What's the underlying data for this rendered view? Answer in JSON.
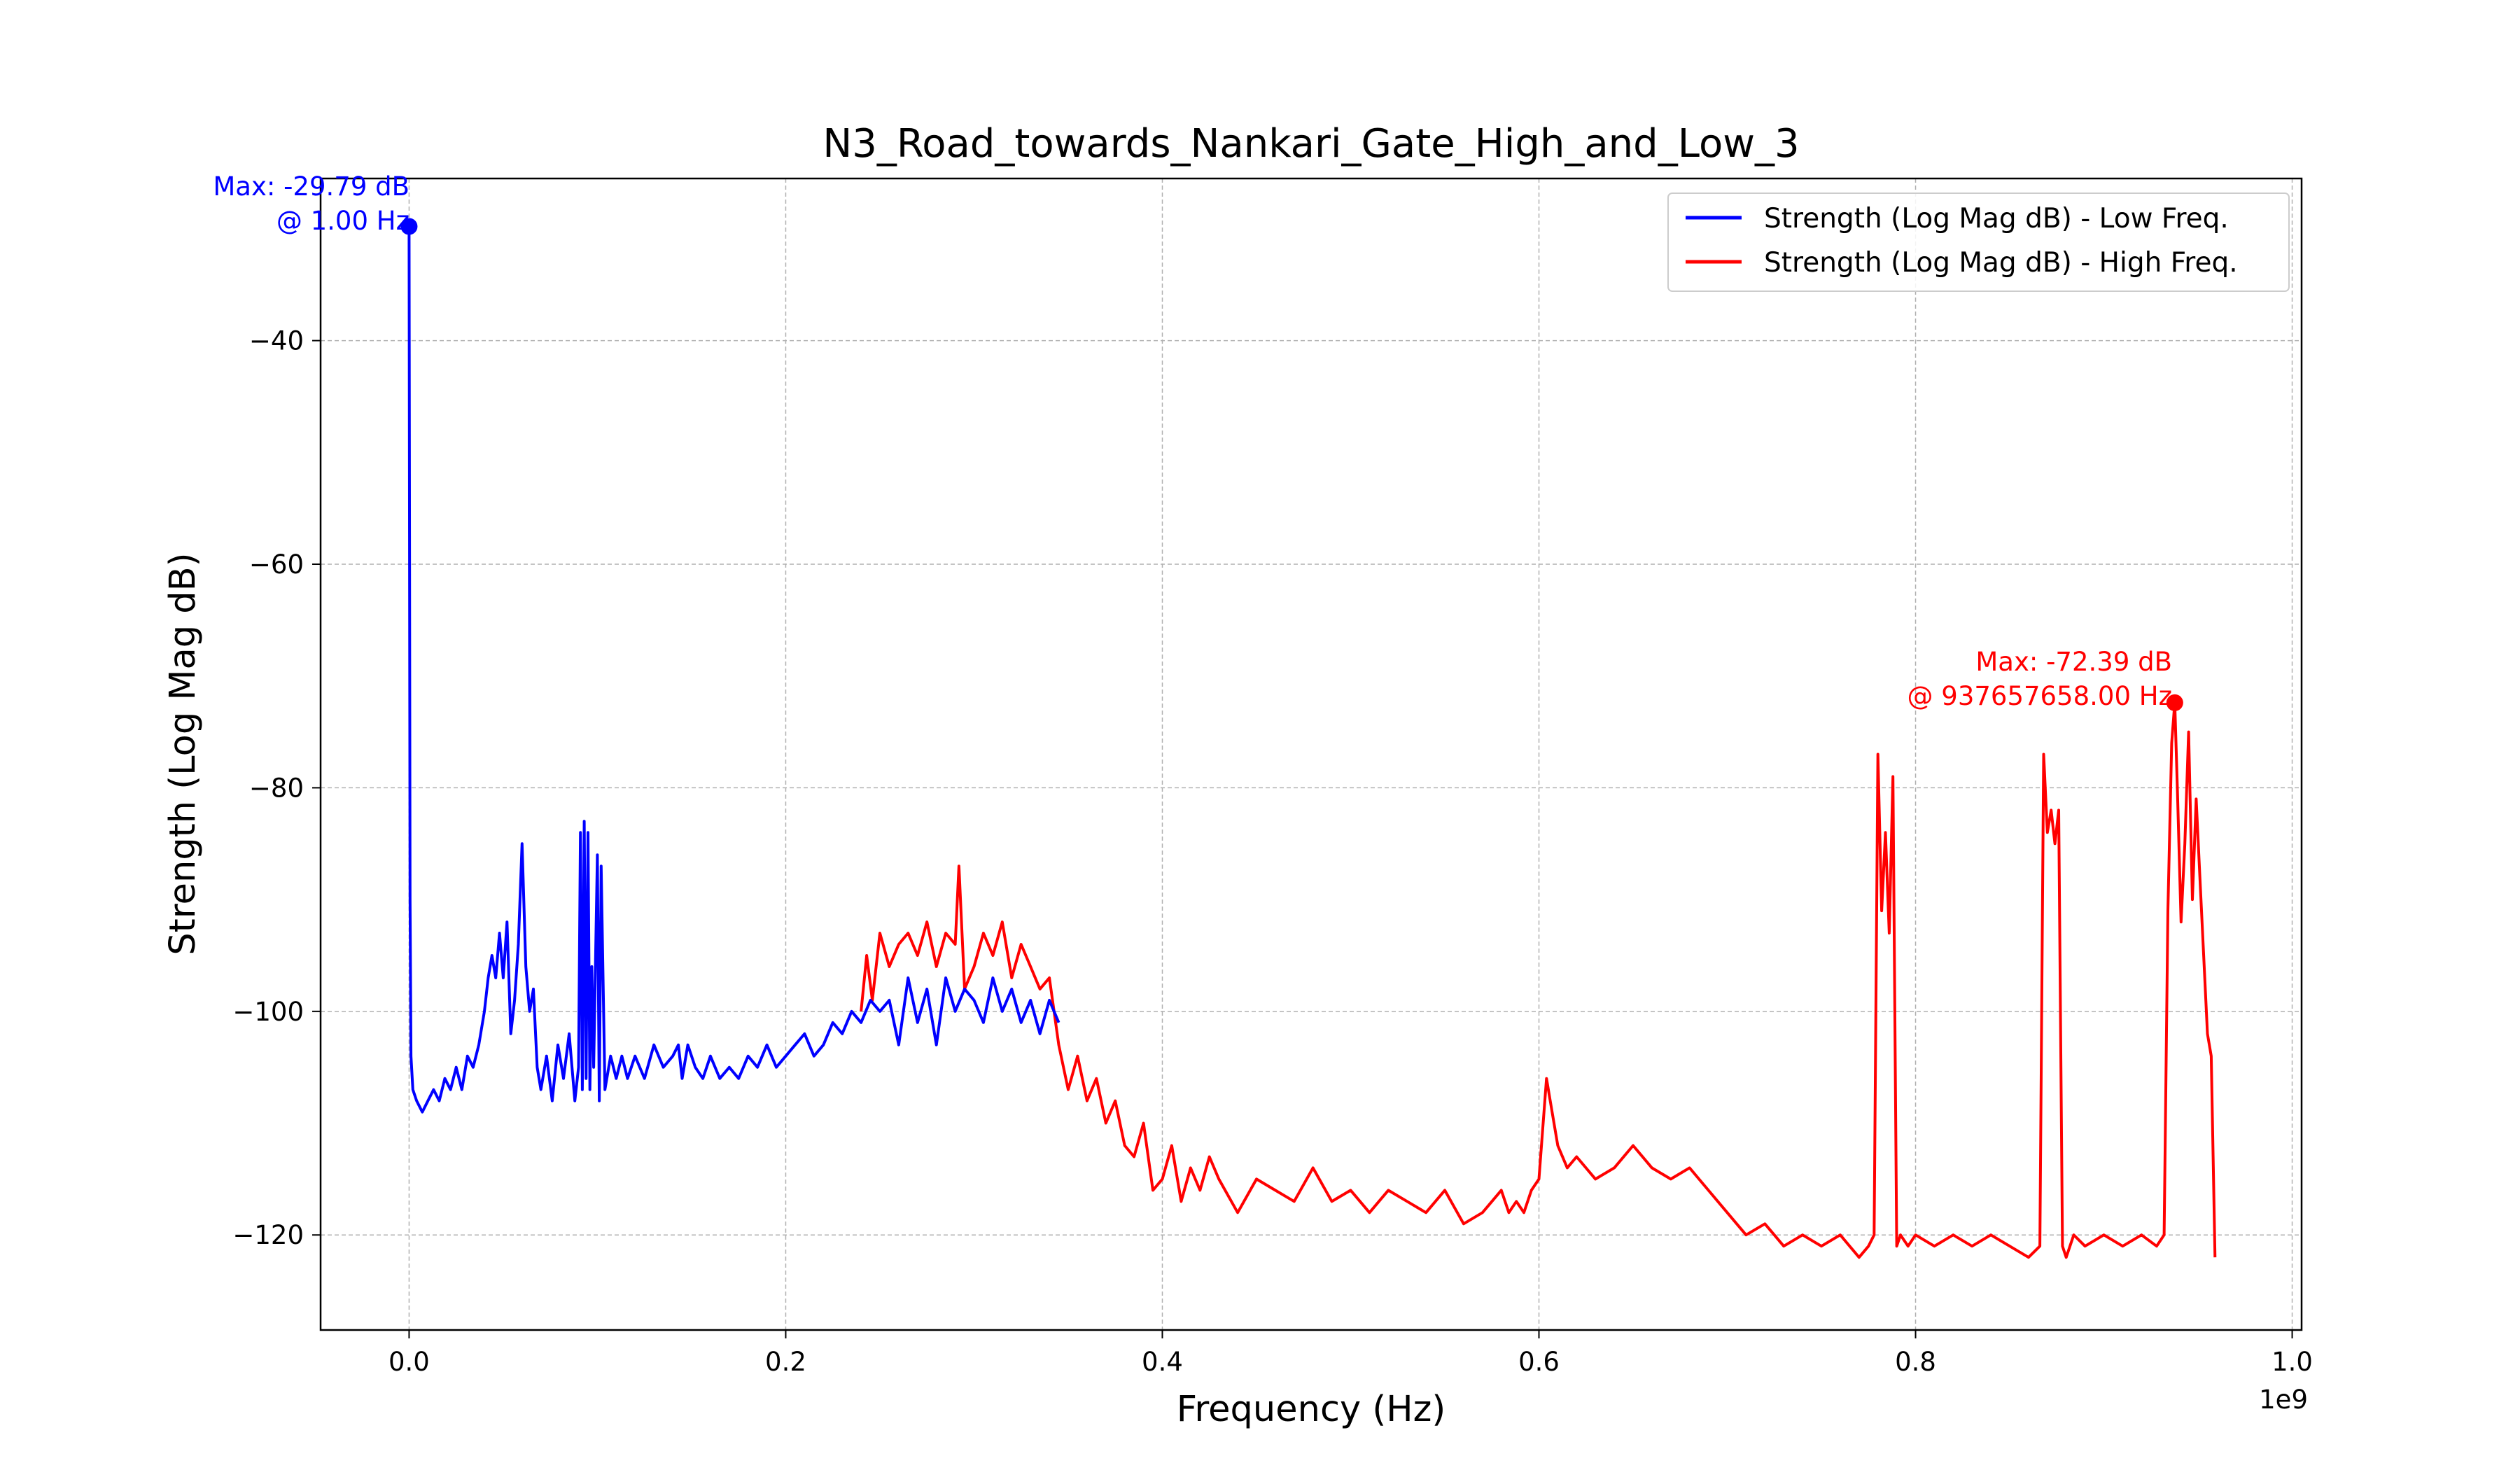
{
  "chart_data": {
    "type": "line",
    "title": "N3_Road_towards_Nankari_Gate_High_and_Low_3",
    "xlabel": "Frequency (Hz)",
    "ylabel": "Strength (Log Mag dB)",
    "x_scale_note": "1e9",
    "x_unit_scale": 1000000000,
    "xlim": [
      -47000000,
      1005000000
    ],
    "ylim": [
      -128.5,
      -25.5
    ],
    "x_ticks": [
      0,
      200000000,
      400000000,
      600000000,
      800000000,
      1000000000
    ],
    "x_tick_labels": [
      "0.0",
      "0.2",
      "0.4",
      "0.6",
      "0.8",
      "1.0"
    ],
    "y_ticks": [
      -40,
      -60,
      -80,
      -100,
      -120
    ],
    "y_tick_labels": [
      "−40",
      "−60",
      "−80",
      "−100",
      "−120"
    ],
    "grid": true,
    "legend_position": "top-right",
    "series": [
      {
        "name": "Strength (Log Mag dB) - Low Freq.",
        "color": "#0000ff",
        "x": [
          1,
          200000,
          500000,
          1000000,
          2000000,
          4000000,
          7000000,
          10000000,
          13000000,
          16000000,
          19000000,
          22000000,
          25000000,
          28000000,
          31000000,
          34000000,
          37000000,
          40000000,
          42000000,
          44000000,
          46000000,
          48000000,
          50000000,
          52000000,
          54000000,
          56000000,
          58000000,
          60000000,
          62000000,
          64000000,
          66000000,
          68000000,
          70000000,
          73000000,
          76000000,
          79000000,
          82000000,
          85000000,
          88000000,
          90000000,
          91000000,
          92000000,
          93000000,
          94000000,
          95000000,
          96000000,
          97000000,
          98000000,
          100000000,
          101000000,
          102000000,
          104000000,
          107000000,
          110000000,
          113000000,
          116000000,
          120000000,
          125000000,
          130000000,
          135000000,
          140000000,
          143000000,
          145000000,
          148000000,
          152000000,
          156000000,
          160000000,
          165000000,
          170000000,
          175000000,
          180000000,
          185000000,
          190000000,
          195000000,
          200000000,
          205000000,
          210000000,
          215000000,
          220000000,
          225000000,
          230000000,
          235000000,
          240000000,
          245000000,
          250000000,
          255000000,
          260000000,
          265000000,
          270000000,
          275000000,
          280000000,
          285000000,
          290000000,
          295000000,
          300000000,
          305000000,
          310000000,
          315000000,
          320000000,
          325000000,
          330000000,
          335000000,
          340000000,
          345000000
        ],
        "y": [
          -29.79,
          -55,
          -90,
          -104,
          -107,
          -108,
          -109,
          -108,
          -107,
          -108,
          -106,
          -107,
          -105,
          -107,
          -104,
          -105,
          -103,
          -100,
          -97,
          -95,
          -97,
          -93,
          -97,
          -92,
          -102,
          -99,
          -94,
          -85,
          -96,
          -100,
          -98,
          -105,
          -107,
          -104,
          -108,
          -103,
          -106,
          -102,
          -108,
          -105,
          -84,
          -107,
          -83,
          -106,
          -84,
          -107,
          -96,
          -105,
          -86,
          -108,
          -87,
          -107,
          -104,
          -106,
          -104,
          -106,
          -104,
          -106,
          -103,
          -105,
          -104,
          -103,
          -106,
          -103,
          -105,
          -106,
          -104,
          -106,
          -105,
          -106,
          -104,
          -105,
          -103,
          -105,
          -104,
          -103,
          -102,
          -104,
          -103,
          -101,
          -102,
          -100,
          -101,
          -99,
          -100,
          -99,
          -103,
          -97,
          -101,
          -98,
          -103,
          -97,
          -100,
          -98,
          -99,
          -101,
          -97,
          -100,
          -98,
          -101,
          -99,
          -102,
          -99,
          -101
        ]
      },
      {
        "name": "Strength (Log Mag dB) - High Freq.",
        "color": "#ff0000",
        "x": [
          240000000,
          243000000,
          246000000,
          250000000,
          255000000,
          260000000,
          265000000,
          270000000,
          275000000,
          280000000,
          285000000,
          290000000,
          292000000,
          295000000,
          300000000,
          305000000,
          310000000,
          315000000,
          320000000,
          325000000,
          330000000,
          335000000,
          340000000,
          345000000,
          350000000,
          355000000,
          360000000,
          365000000,
          370000000,
          375000000,
          380000000,
          385000000,
          390000000,
          395000000,
          400000000,
          405000000,
          410000000,
          415000000,
          420000000,
          425000000,
          430000000,
          440000000,
          450000000,
          460000000,
          470000000,
          480000000,
          490000000,
          500000000,
          510000000,
          520000000,
          530000000,
          540000000,
          550000000,
          560000000,
          570000000,
          575000000,
          580000000,
          584000000,
          588000000,
          592000000,
          596000000,
          600000000,
          604000000,
          606000000,
          610000000,
          615000000,
          620000000,
          630000000,
          640000000,
          650000000,
          660000000,
          670000000,
          680000000,
          690000000,
          700000000,
          710000000,
          720000000,
          730000000,
          740000000,
          750000000,
          760000000,
          770000000,
          775000000,
          778000000,
          780000000,
          782000000,
          784000000,
          786000000,
          788000000,
          790000000,
          792000000,
          796000000,
          800000000,
          810000000,
          820000000,
          830000000,
          840000000,
          850000000,
          860000000,
          866000000,
          868000000,
          870000000,
          872000000,
          874000000,
          876000000,
          878000000,
          880000000,
          884000000,
          890000000,
          900000000,
          910000000,
          920000000,
          928000000,
          932000000,
          934000000,
          936000000,
          937657658,
          939000000,
          941000000,
          943000000,
          945000000,
          947000000,
          949000000,
          951000000,
          953000000,
          955000000,
          957000000,
          959000000
        ],
        "y": [
          -100,
          -95,
          -99,
          -93,
          -96,
          -94,
          -93,
          -95,
          -92,
          -96,
          -93,
          -94,
          -87,
          -98,
          -96,
          -93,
          -95,
          -92,
          -97,
          -94,
          -96,
          -98,
          -97,
          -103,
          -107,
          -104,
          -108,
          -106,
          -110,
          -108,
          -112,
          -113,
          -110,
          -116,
          -115,
          -112,
          -117,
          -114,
          -116,
          -113,
          -115,
          -118,
          -115,
          -116,
          -117,
          -114,
          -117,
          -116,
          -118,
          -116,
          -117,
          -118,
          -116,
          -119,
          -118,
          -117,
          -116,
          -118,
          -117,
          -118,
          -116,
          -115,
          -106,
          -108,
          -112,
          -114,
          -113,
          -115,
          -114,
          -112,
          -114,
          -115,
          -114,
          -116,
          -118,
          -120,
          -119,
          -121,
          -120,
          -121,
          -120,
          -122,
          -121,
          -120,
          -77,
          -91,
          -84,
          -93,
          -79,
          -121,
          -120,
          -121,
          -120,
          -121,
          -120,
          -121,
          -120,
          -121,
          -122,
          -121,
          -77,
          -84,
          -82,
          -85,
          -82,
          -121,
          -122,
          -120,
          -121,
          -120,
          -121,
          -120,
          -121,
          -120,
          -91,
          -76,
          -72.39,
          -80,
          -92,
          -85,
          -75,
          -90,
          -81,
          -88,
          -95,
          -102,
          -104,
          -122
        ]
      }
    ],
    "annotations": [
      {
        "line1": "Max: -29.79 dB",
        "line2": "@ 1.00 Hz",
        "x": 1,
        "y": -29.79,
        "color": "#0000ff"
      },
      {
        "line1": "Max: -72.39 dB",
        "line2": "@ 937657658.00 Hz",
        "x": 937657658,
        "y": -72.39,
        "color": "#ff0000"
      }
    ]
  }
}
